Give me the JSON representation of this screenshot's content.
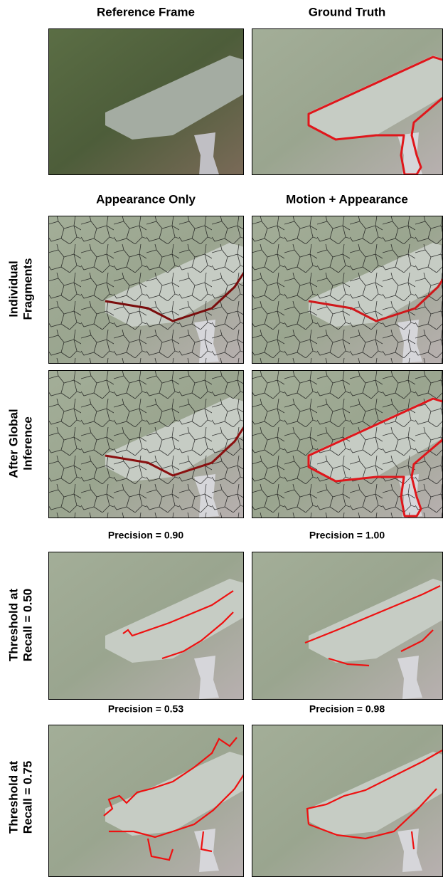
{
  "header": {
    "col1": "Reference Frame",
    "col2": "Ground Truth"
  },
  "methods": {
    "col1": "Appearance Only",
    "col2": "Motion + Appearance"
  },
  "rows": [
    {
      "label": [
        "Individual",
        "Fragments"
      ]
    },
    {
      "label": [
        "After Global",
        "Inference"
      ]
    },
    {
      "label": [
        "Threshold at",
        "Recall = 0.50"
      ],
      "precision": [
        "Precision = 0.90",
        "Precision = 1.00"
      ]
    },
    {
      "label": [
        "Threshold at",
        "Recall = 0.75"
      ],
      "precision": [
        "Precision = 0.53",
        "Precision = 0.98"
      ]
    }
  ]
}
